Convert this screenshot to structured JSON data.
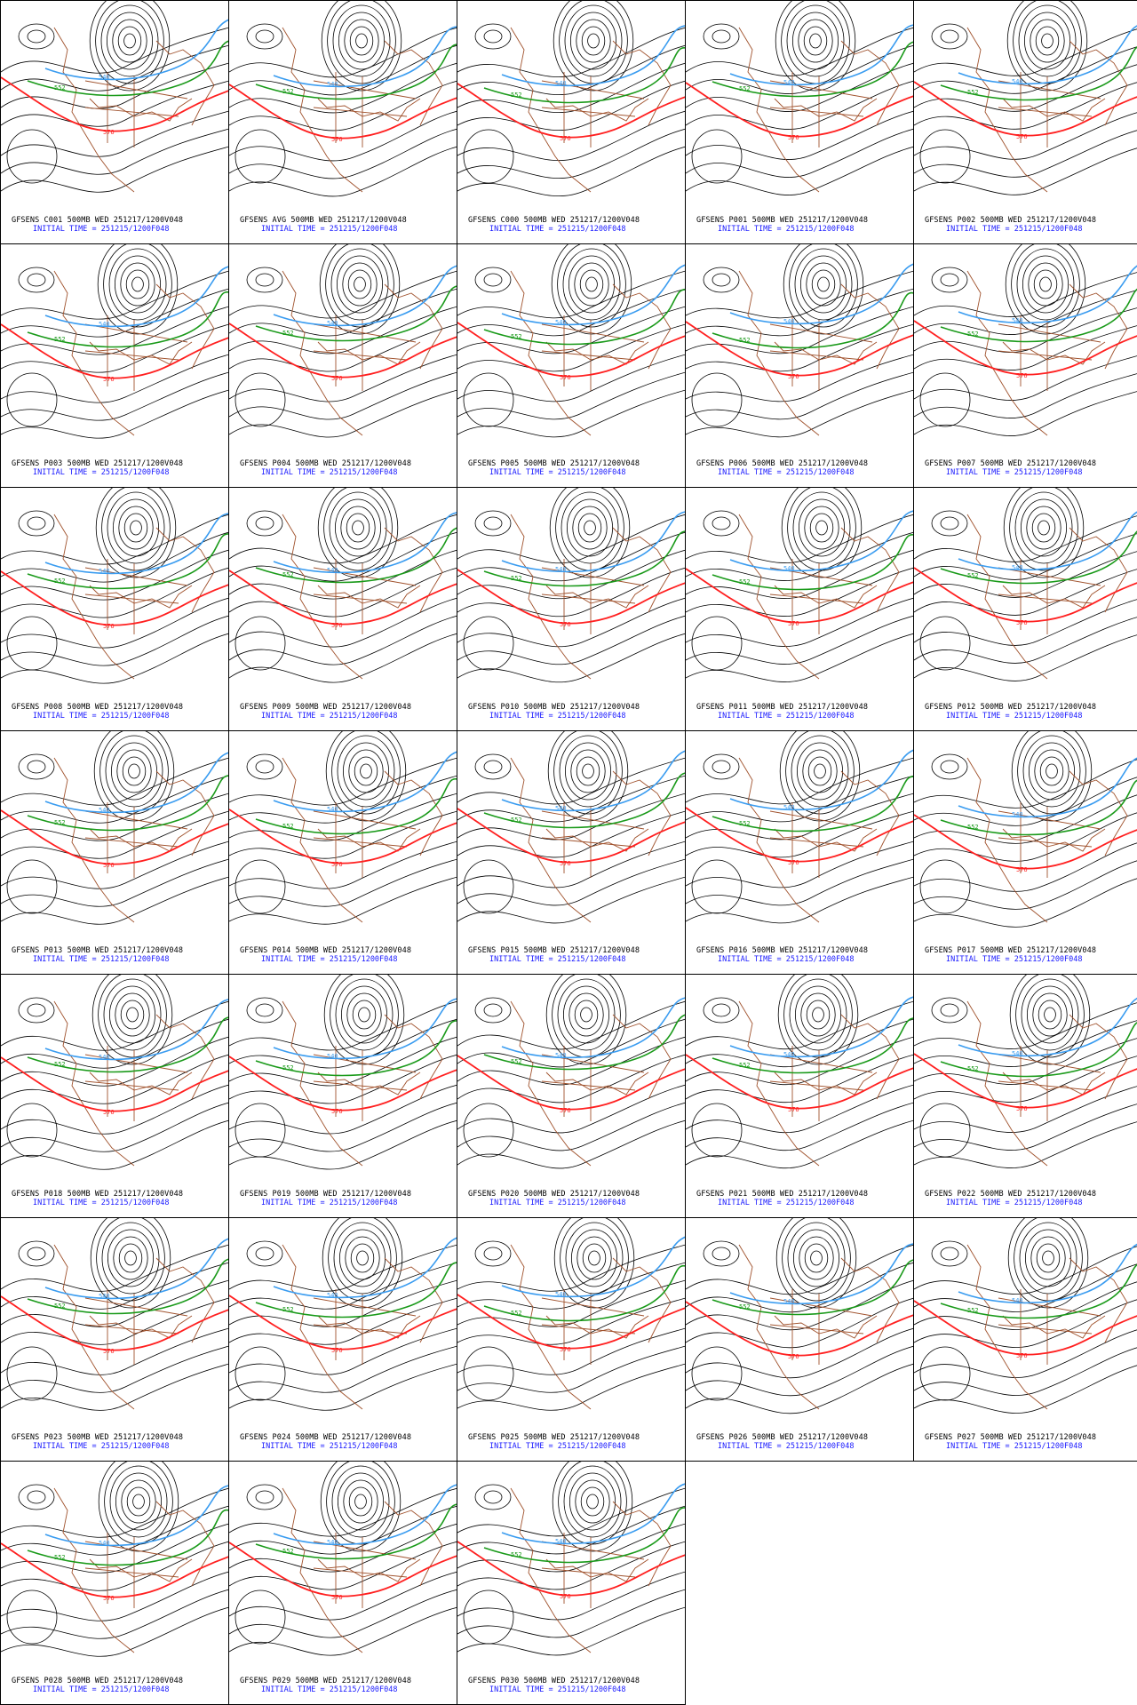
{
  "contour_levels": {
    "low": "576",
    "mid1": "552",
    "mid2": "540"
  },
  "colors": {
    "low": "#ff2020",
    "mid1": "#1a9a1a",
    "mid2": "#3a9cf0",
    "coast": "#a0522d",
    "base": "#000000",
    "init": "#1a1aff"
  },
  "panels": [
    {
      "title": "GFSENS C001 500MB WED 251217/1200V048",
      "init": "INITIAL TIME = 251215/1200F048"
    },
    {
      "title": "GFSENS AVG 500MB WED 251217/1200V048",
      "init": "INITIAL TIME = 251215/1200F048"
    },
    {
      "title": "GFSENS C000 500MB WED 251217/1200V048",
      "init": "INITIAL TIME = 251215/1200F048"
    },
    {
      "title": "GFSENS P001 500MB WED 251217/1200V048",
      "init": "INITIAL TIME = 251215/1200F048"
    },
    {
      "title": "GFSENS P002 500MB WED 251217/1200V048",
      "init": "INITIAL TIME = 251215/1200F048"
    },
    {
      "title": "GFSENS P003 500MB WED 251217/1200V048",
      "init": "INITIAL TIME = 251215/1200F048"
    },
    {
      "title": "GFSENS P004 500MB WED 251217/1200V048",
      "init": "INITIAL TIME = 251215/1200F048"
    },
    {
      "title": "GFSENS P005 500MB WED 251217/1200V048",
      "init": "INITIAL TIME = 251215/1200F048"
    },
    {
      "title": "GFSENS P006 500MB WED 251217/1200V048",
      "init": "INITIAL TIME = 251215/1200F048"
    },
    {
      "title": "GFSENS P007 500MB WED 251217/1200V048",
      "init": "INITIAL TIME = 251215/1200F048"
    },
    {
      "title": "GFSENS P008 500MB WED 251217/1200V048",
      "init": "INITIAL TIME = 251215/1200F048"
    },
    {
      "title": "GFSENS P009 500MB WED 251217/1200V048",
      "init": "INITIAL TIME = 251215/1200F048"
    },
    {
      "title": "GFSENS P010 500MB WED 251217/1200V048",
      "init": "INITIAL TIME = 251215/1200F048"
    },
    {
      "title": "GFSENS P011 500MB WED 251217/1200V048",
      "init": "INITIAL TIME = 251215/1200F048"
    },
    {
      "title": "GFSENS P012 500MB WED 251217/1200V048",
      "init": "INITIAL TIME = 251215/1200F048"
    },
    {
      "title": "GFSENS P013 500MB WED 251217/1200V048",
      "init": "INITIAL TIME = 251215/1200F048"
    },
    {
      "title": "GFSENS P014 500MB WED 251217/1200V048",
      "init": "INITIAL TIME = 251215/1200F048"
    },
    {
      "title": "GFSENS P015 500MB WED 251217/1200V048",
      "init": "INITIAL TIME = 251215/1200F048"
    },
    {
      "title": "GFSENS P016 500MB WED 251217/1200V048",
      "init": "INITIAL TIME = 251215/1200F048"
    },
    {
      "title": "GFSENS P017 500MB WED 251217/1200V048",
      "init": "INITIAL TIME = 251215/1200F048"
    },
    {
      "title": "GFSENS P018 500MB WED 251217/1200V048",
      "init": "INITIAL TIME = 251215/1200F048"
    },
    {
      "title": "GFSENS P019 500MB WED 251217/1200V048",
      "init": "INITIAL TIME = 251215/1200F048"
    },
    {
      "title": "GFSENS P020 500MB WED 251217/1200V048",
      "init": "INITIAL TIME = 251215/1200F048"
    },
    {
      "title": "GFSENS P021 500MB WED 251217/1200V048",
      "init": "INITIAL TIME = 251215/1200F048"
    },
    {
      "title": "GFSENS P022 500MB WED 251217/1200V048",
      "init": "INITIAL TIME = 251215/1200F048"
    },
    {
      "title": "GFSENS P023 500MB WED 251217/1200V048",
      "init": "INITIAL TIME = 251215/1200F048"
    },
    {
      "title": "GFSENS P024 500MB WED 251217/1200V048",
      "init": "INITIAL TIME = 251215/1200F048"
    },
    {
      "title": "GFSENS P025 500MB WED 251217/1200V048",
      "init": "INITIAL TIME = 251215/1200F048"
    },
    {
      "title": "GFSENS P026 500MB WED 251217/1200V048",
      "init": "INITIAL TIME = 251215/1200F048"
    },
    {
      "title": "GFSENS P027 500MB WED 251217/1200V048",
      "init": "INITIAL TIME = 251215/1200F048"
    },
    {
      "title": "GFSENS P028 500MB WED 251217/1200V048",
      "init": "INITIAL TIME = 251215/1200F048"
    },
    {
      "title": "GFSENS P029 500MB WED 251217/1200V048",
      "init": "INITIAL TIME = 251215/1200F048"
    },
    {
      "title": "GFSENS P030 500MB WED 251217/1200V048",
      "init": "INITIAL TIME = 251215/1200F048"
    }
  ]
}
